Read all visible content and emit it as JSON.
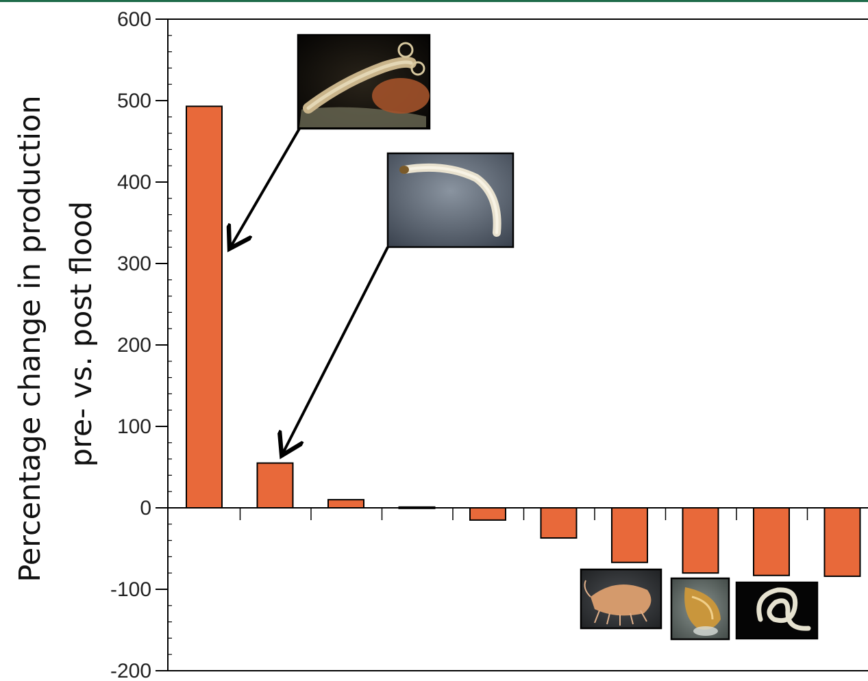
{
  "chart_data": {
    "type": "bar",
    "ylabel_line1": "Percentage change in production",
    "ylabel_line2": "pre- vs. post flood",
    "ylim": [
      -200,
      600
    ],
    "yticks": [
      600,
      500,
      400,
      300,
      200,
      100,
      0,
      -100,
      -200
    ],
    "ytick_labels": [
      "600",
      "500",
      "400",
      "300",
      "200",
      "100",
      "0",
      "-100",
      "-200"
    ],
    "values": [
      493,
      55,
      10,
      1,
      -15,
      -37,
      -67,
      -80,
      -83,
      -84
    ],
    "grid": false,
    "colors": {
      "bar": "#e8693a",
      "axis": "#000000",
      "border": "#1e6b4a"
    },
    "insets": [
      {
        "icon": "larva-photo-inset",
        "points_to_bar": 0
      },
      {
        "icon": "midge-larva-photo-inset",
        "points_to_bar": 1
      },
      {
        "icon": "amphipod-photo-inset"
      },
      {
        "icon": "snail-photo-inset"
      },
      {
        "icon": "worm-photo-inset"
      }
    ]
  }
}
